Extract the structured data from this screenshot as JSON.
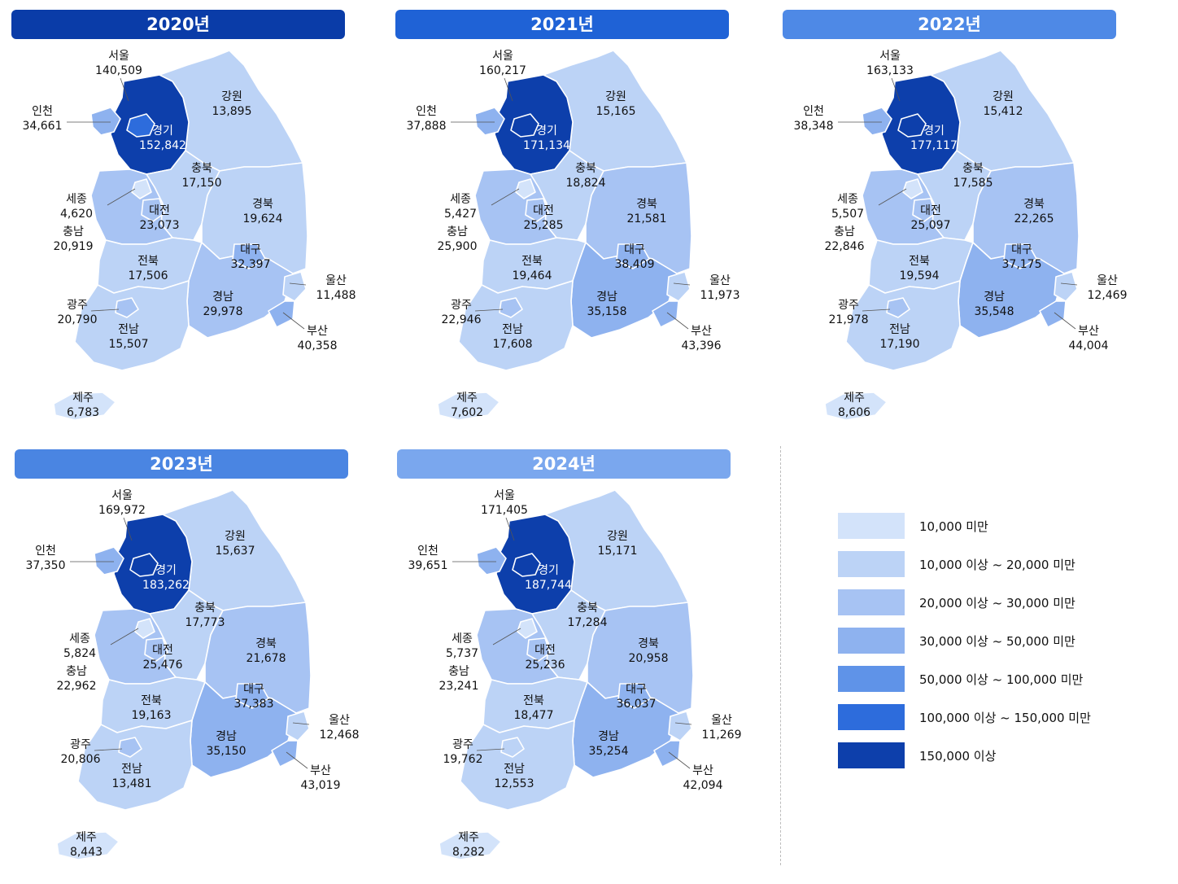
{
  "colors": {
    "header_2020": "#0a3ca8",
    "header_2021": "#1f62d6",
    "header_2022": "#4e89e6",
    "header_2023": "#4a85e2",
    "header_2024": "#7aa7ee",
    "legend": [
      "#d3e3fa",
      "#bcd3f6",
      "#a7c3f3",
      "#8eb2ef",
      "#5f93e8",
      "#2d6cdc",
      "#0d3fab"
    ]
  },
  "legend": [
    {
      "label": "10,000 미만"
    },
    {
      "label": "10,000 이상 ~ 20,000 미만"
    },
    {
      "label": "20,000 이상 ~ 30,000 미만"
    },
    {
      "label": "30,000 이상 ~ 50,000 미만"
    },
    {
      "label": "50,000 이상 ~ 100,000 미만"
    },
    {
      "label": "100,000 이상 ~ 150,000 미만"
    },
    {
      "label": "150,000 이상"
    }
  ],
  "region_names": {
    "seoul": "서울",
    "incheon": "인천",
    "gyeonggi": "경기",
    "gangwon": "강원",
    "chungbuk": "충북",
    "sejong": "세종",
    "daejeon": "대전",
    "chungnam": "충남",
    "gyeongbuk": "경북",
    "daegu": "대구",
    "jeonbuk": "전북",
    "ulsan": "울산",
    "gwangju": "광주",
    "gyeongnam": "경남",
    "jeonnam": "전남",
    "busan": "부산",
    "jeju": "제주"
  },
  "chungnam_2021_label": "충남",
  "panels": [
    {
      "year": "2020년",
      "values": {
        "seoul": "140,509",
        "incheon": "34,661",
        "gyeonggi": "152,842",
        "gangwon": "13,895",
        "chungbuk": "17,150",
        "sejong": "4,620",
        "daejeon": "23,073",
        "chungnam": "20,919",
        "gyeongbuk": "19,624",
        "daegu": "32,397",
        "jeonbuk": "17,506",
        "ulsan": "11,488",
        "gwangju": "20,790",
        "gyeongnam": "29,978",
        "jeonnam": "15,507",
        "busan": "40,358",
        "jeju": "6,783"
      }
    },
    {
      "year": "2021년",
      "values": {
        "seoul": "160,217",
        "incheon": "37,888",
        "gyeonggi": "171,134",
        "gangwon": "15,165",
        "chungbuk": "18,824",
        "sejong": "5,427",
        "daejeon": "25,285",
        "chungnam": "25,900",
        "gyeongbuk": "21,581",
        "daegu": "38,409",
        "jeonbuk": "19,464",
        "ulsan": "11,973",
        "gwangju": "22,946",
        "gyeongnam": "35,158",
        "jeonnam": "17,608",
        "busan": "43,396",
        "jeju": "7,602"
      }
    },
    {
      "year": "2022년",
      "values": {
        "seoul": "163,133",
        "incheon": "38,348",
        "gyeonggi": "177,117",
        "gangwon": "15,412",
        "chungbuk": "17,585",
        "sejong": "5,507",
        "daejeon": "25,097",
        "chungnam": "22,846",
        "gyeongbuk": "22,265",
        "daegu": "37,175",
        "jeonbuk": "19,594",
        "ulsan": "12,469",
        "gwangju": "21,978",
        "gyeongnam": "35,548",
        "jeonnam": "17,190",
        "busan": "44,004",
        "jeju": "8,606"
      }
    },
    {
      "year": "2023년",
      "values": {
        "seoul": "169,972",
        "incheon": "37,350",
        "gyeonggi": "183,262",
        "gangwon": "15,637",
        "chungbuk": "17,773",
        "sejong": "5,824",
        "daejeon": "25,476",
        "chungnam": "22,962",
        "gyeongbuk": "21,678",
        "daegu": "37,383",
        "jeonbuk": "19,163",
        "ulsan": "12,468",
        "gwangju": "20,806",
        "gyeongnam": "35,150",
        "jeonnam": "13,481",
        "busan": "43,019",
        "jeju": "8,443"
      }
    },
    {
      "year": "2024년",
      "values": {
        "seoul": "171,405",
        "incheon": "39,651",
        "gyeonggi": "187,744",
        "gangwon": "15,171",
        "chungbuk": "17,284",
        "sejong": "5,737",
        "daejeon": "25,236",
        "chungnam": "23,241",
        "gyeongbuk": "20,958",
        "daegu": "36,037",
        "jeonbuk": "18,477",
        "ulsan": "11,269",
        "gwangju": "19,762",
        "gyeongnam": "35,254",
        "jeonnam": "12,553",
        "busan": "42,094",
        "jeju": "8,282"
      }
    }
  ]
}
